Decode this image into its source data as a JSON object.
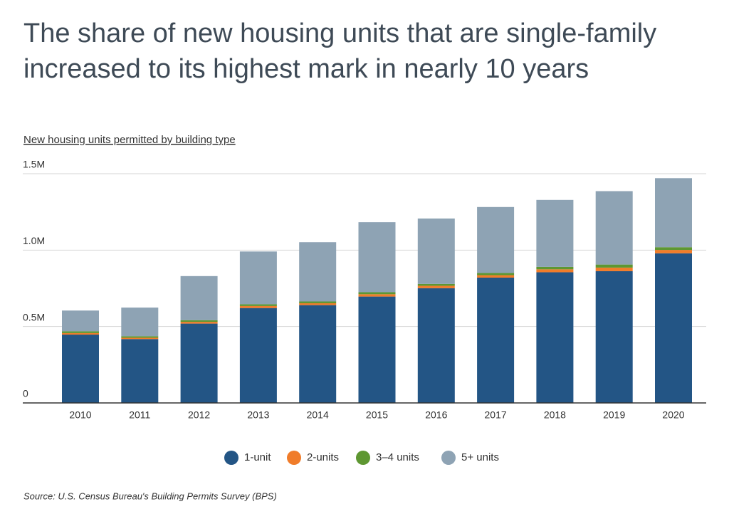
{
  "chart_data": {
    "type": "stacked-bar",
    "title": "The share of new housing units that are single-family increased to its highest mark in nearly 10 years",
    "subtitle": "New housing units permitted by building type",
    "source": "Source:  U.S. Census Bureau's Building Permits Survey (BPS)",
    "categories": [
      "2010",
      "2011",
      "2012",
      "2013",
      "2014",
      "2015",
      "2016",
      "2017",
      "2018",
      "2019",
      "2020"
    ],
    "series": [
      {
        "name": "1-unit",
        "color": "#235585",
        "values": [
          447000,
          418000,
          519000,
          621000,
          640000,
          696000,
          751000,
          820000,
          855000,
          862000,
          979000
        ]
      },
      {
        "name": "2-units",
        "color": "#f07c2a",
        "values": [
          10000,
          8500,
          11600,
          13000,
          12300,
          15300,
          15600,
          16000,
          19200,
          23500,
          22100
        ]
      },
      {
        "name": "3–4 units",
        "color": "#5e9732",
        "values": [
          11600,
          10000,
          10900,
          11600,
          11500,
          13000,
          12000,
          14000,
          16000,
          20000,
          18000
        ]
      },
      {
        "name": "5+ units",
        "color": "#8ea3b4",
        "values": [
          136000,
          187500,
          288500,
          345400,
          388000,
          458300,
          428200,
          432000,
          438300,
          480400,
          451600
        ]
      }
    ],
    "ylim": [
      0,
      1500000
    ],
    "yticks": [
      0,
      {
        "value": 500000,
        "label": "0.5M"
      },
      {
        "value": 1000000,
        "label": "1.0M"
      },
      {
        "value": 1500000,
        "label": "1.5M"
      }
    ],
    "grid": true
  }
}
